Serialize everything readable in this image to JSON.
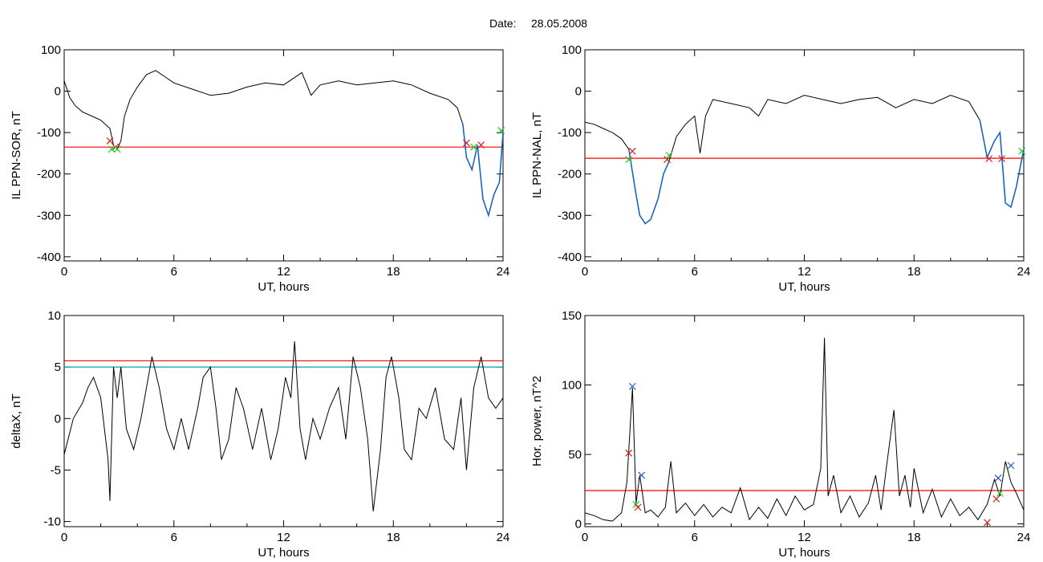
{
  "header": {
    "date_label": "Date:",
    "date_value": "28.05.2008"
  },
  "colors": {
    "trace": "#000000",
    "threshold": "#ff0000",
    "secondary_threshold": "#00a0a0",
    "highlight": "#1060c0",
    "marker_red": "#cc2222",
    "marker_green": "#22cc22",
    "marker_blue": "#2255cc"
  },
  "chart_data": [
    {
      "type": "line",
      "xlabel": "UT, hours",
      "ylabel": "IL PPN-SOR, nT",
      "xlim": [
        0,
        24
      ],
      "ylim": [
        -410,
        100
      ],
      "xticks": [
        "0",
        "6",
        "12",
        "18",
        "24"
      ],
      "yticks": [
        "100",
        "0",
        "-100",
        "-200",
        "-300",
        "-400"
      ],
      "ytick_values": [
        100,
        0,
        -100,
        -200,
        -300,
        -400
      ],
      "x": [
        0,
        0.3,
        0.6,
        1.0,
        1.5,
        2.0,
        2.5,
        2.7,
        2.9,
        3.1,
        3.3,
        3.6,
        4.0,
        4.5,
        5.0,
        5.5,
        6.0,
        7.0,
        8.0,
        9.0,
        10.0,
        11.0,
        12.0,
        12.5,
        13.0,
        13.5,
        14.0,
        15.0,
        16.0,
        17.0,
        18.0,
        19.0,
        20.0,
        21.0,
        21.5,
        21.8,
        22.0,
        22.3,
        22.6,
        22.9,
        23.2,
        23.5,
        23.8,
        24.0
      ],
      "y": [
        25,
        -15,
        -35,
        -50,
        -60,
        -70,
        -90,
        -130,
        -140,
        -120,
        -60,
        -20,
        10,
        40,
        50,
        35,
        20,
        5,
        -10,
        -5,
        10,
        20,
        15,
        30,
        45,
        -10,
        15,
        25,
        15,
        20,
        25,
        15,
        -5,
        -20,
        -40,
        -80,
        -160,
        -190,
        -130,
        -260,
        -300,
        -250,
        -220,
        -100
      ],
      "highlight_x": [
        21.8,
        22.0,
        22.3,
        22.6,
        22.9,
        23.2,
        23.5,
        23.8,
        24.0
      ],
      "highlight_y": [
        -80,
        -160,
        -190,
        -130,
        -260,
        -300,
        -250,
        -220,
        -100
      ],
      "threshold": -135,
      "markers": [
        {
          "x": 2.5,
          "y": -120,
          "color": "red"
        },
        {
          "x": 2.8,
          "y": -135,
          "color": "red"
        },
        {
          "x": 2.6,
          "y": -140,
          "color": "green"
        },
        {
          "x": 2.9,
          "y": -140,
          "color": "green"
        },
        {
          "x": 22.0,
          "y": -125,
          "color": "red"
        },
        {
          "x": 22.8,
          "y": -130,
          "color": "red"
        },
        {
          "x": 22.4,
          "y": -135,
          "color": "green"
        },
        {
          "x": 23.9,
          "y": -95,
          "color": "green"
        }
      ]
    },
    {
      "type": "line",
      "xlabel": "UT, hours",
      "ylabel": "IL PPN-NAL, nT",
      "xlim": [
        0,
        24
      ],
      "ylim": [
        -410,
        100
      ],
      "xticks": [
        "0",
        "6",
        "12",
        "18",
        "24"
      ],
      "yticks": [
        "100",
        "0",
        "-100",
        "-200",
        "-300",
        "-400"
      ],
      "ytick_values": [
        100,
        0,
        -100,
        -200,
        -300,
        -400
      ],
      "x": [
        0,
        0.5,
        1.0,
        1.5,
        2.0,
        2.4,
        2.8,
        3.0,
        3.3,
        3.6,
        4.0,
        4.3,
        4.6,
        5.0,
        5.5,
        6.0,
        6.3,
        6.6,
        7.0,
        8.0,
        9.0,
        9.5,
        10.0,
        11.0,
        12.0,
        13.0,
        14.0,
        15.0,
        16.0,
        17.0,
        18.0,
        19.0,
        20.0,
        21.0,
        21.6,
        22.0,
        22.4,
        22.7,
        23.0,
        23.3,
        23.6,
        24.0
      ],
      "y": [
        -75,
        -80,
        -90,
        -100,
        -115,
        -140,
        -250,
        -300,
        -320,
        -310,
        -260,
        -200,
        -170,
        -110,
        -80,
        -60,
        -150,
        -60,
        -20,
        -30,
        -40,
        -60,
        -20,
        -30,
        -10,
        -20,
        -30,
        -20,
        -15,
        -40,
        -20,
        -30,
        -10,
        -25,
        -70,
        -160,
        -120,
        -100,
        -270,
        -280,
        -230,
        -140
      ],
      "highlight_x": [
        2.4,
        2.8,
        3.0,
        3.3,
        3.6,
        4.0,
        4.3,
        4.6,
        21.6,
        22.0,
        22.4,
        22.7,
        23.0,
        23.3,
        23.6,
        24.0
      ],
      "highlight_y": [
        -140,
        -250,
        -300,
        -320,
        -310,
        -260,
        -200,
        -170,
        -70,
        -160,
        -120,
        -100,
        -270,
        -280,
        -230,
        -140
      ],
      "threshold": -162,
      "markers": [
        {
          "x": 2.4,
          "y": -165,
          "color": "green"
        },
        {
          "x": 2.6,
          "y": -145,
          "color": "red"
        },
        {
          "x": 4.5,
          "y": -165,
          "color": "red"
        },
        {
          "x": 4.6,
          "y": -155,
          "color": "green"
        },
        {
          "x": 22.1,
          "y": -163,
          "color": "red"
        },
        {
          "x": 22.8,
          "y": -163,
          "color": "red"
        },
        {
          "x": 23.9,
          "y": -145,
          "color": "green"
        }
      ]
    },
    {
      "type": "line",
      "xlabel": "UT, hours",
      "ylabel": "deltaX, nT",
      "xlim": [
        0,
        24
      ],
      "ylim": [
        -10.5,
        10
      ],
      "xticks": [
        "0",
        "6",
        "12",
        "18",
        "24"
      ],
      "yticks": [
        "10",
        "5",
        "0",
        "-5",
        "-10"
      ],
      "ytick_values": [
        10,
        5,
        0,
        -5,
        -10
      ],
      "x": [
        0,
        0.5,
        1.0,
        1.3,
        1.6,
        2.0,
        2.4,
        2.5,
        2.7,
        2.9,
        3.1,
        3.4,
        3.8,
        4.2,
        4.5,
        4.8,
        5.2,
        5.6,
        6.0,
        6.4,
        6.8,
        7.3,
        7.6,
        8.0,
        8.3,
        8.6,
        9.0,
        9.4,
        9.8,
        10.3,
        10.8,
        11.3,
        11.7,
        12.1,
        12.4,
        12.6,
        12.9,
        13.2,
        13.6,
        14.0,
        14.5,
        15.0,
        15.4,
        15.8,
        16.2,
        16.6,
        16.9,
        17.3,
        17.6,
        17.9,
        18.3,
        18.6,
        19.0,
        19.4,
        19.8,
        20.3,
        20.8,
        21.3,
        21.7,
        22.0,
        22.4,
        22.8,
        23.2,
        23.6,
        24.0
      ],
      "y": [
        -3.5,
        0,
        1.5,
        3,
        4,
        2,
        -4,
        -8,
        5,
        2,
        5,
        -1,
        -3,
        0,
        3,
        6,
        3,
        -1,
        -3,
        0,
        -3,
        1,
        4,
        5,
        1,
        -4,
        -2,
        3,
        1,
        -3,
        1,
        -4,
        -1,
        4,
        2,
        7.5,
        -1,
        -4,
        0,
        -2,
        1,
        3,
        -2,
        6,
        3,
        -2,
        -9,
        -3,
        4,
        6,
        2,
        -3,
        -4,
        1,
        0,
        3,
        -2,
        -3,
        2,
        -5,
        3,
        6,
        2,
        1,
        2
      ],
      "thresholds": [
        5.6,
        5.0
      ]
    },
    {
      "type": "line",
      "xlabel": "UT, hours",
      "ylabel": "Hor. power, nT^2",
      "xlim": [
        0,
        24
      ],
      "ylim": [
        -2,
        150
      ],
      "xticks": [
        "0",
        "6",
        "12",
        "18",
        "24"
      ],
      "yticks": [
        "150",
        "100",
        "50",
        "0"
      ],
      "ytick_values": [
        150,
        100,
        50,
        0
      ],
      "x": [
        0,
        0.5,
        1.0,
        1.5,
        2.0,
        2.3,
        2.6,
        2.8,
        3.0,
        3.3,
        3.6,
        4.0,
        4.4,
        4.7,
        5.0,
        5.5,
        6.0,
        6.5,
        7.0,
        7.5,
        8.0,
        8.5,
        9.0,
        9.5,
        10.0,
        10.5,
        11.0,
        11.5,
        12.0,
        12.5,
        12.9,
        13.1,
        13.3,
        13.6,
        14.0,
        14.5,
        15.0,
        15.5,
        15.9,
        16.2,
        16.5,
        16.9,
        17.2,
        17.5,
        17.8,
        18.0,
        18.5,
        19.0,
        19.5,
        20.0,
        20.5,
        21.0,
        21.5,
        22.0,
        22.4,
        22.7,
        23.0,
        23.3,
        23.6,
        24.0
      ],
      "y": [
        8,
        6,
        3,
        2,
        8,
        30,
        98,
        15,
        35,
        8,
        10,
        5,
        12,
        45,
        8,
        15,
        6,
        14,
        5,
        12,
        8,
        26,
        3,
        12,
        4,
        18,
        6,
        20,
        10,
        14,
        40,
        134,
        20,
        35,
        8,
        20,
        5,
        15,
        35,
        10,
        42,
        82,
        20,
        35,
        12,
        40,
        8,
        25,
        5,
        18,
        6,
        12,
        3,
        14,
        32,
        20,
        45,
        30,
        22,
        10
      ],
      "threshold": 24,
      "markers": [
        {
          "x": 2.4,
          "y": 51,
          "color": "red"
        },
        {
          "x": 2.6,
          "y": 99,
          "color": "blue"
        },
        {
          "x": 2.8,
          "y": 14,
          "color": "green"
        },
        {
          "x": 2.9,
          "y": 12,
          "color": "red"
        },
        {
          "x": 3.1,
          "y": 35,
          "color": "blue"
        },
        {
          "x": 22.0,
          "y": 1,
          "color": "red"
        },
        {
          "x": 22.5,
          "y": 18,
          "color": "red"
        },
        {
          "x": 22.6,
          "y": 33,
          "color": "blue"
        },
        {
          "x": 22.7,
          "y": 22,
          "color": "green"
        },
        {
          "x": 23.3,
          "y": 42,
          "color": "blue"
        }
      ]
    }
  ]
}
